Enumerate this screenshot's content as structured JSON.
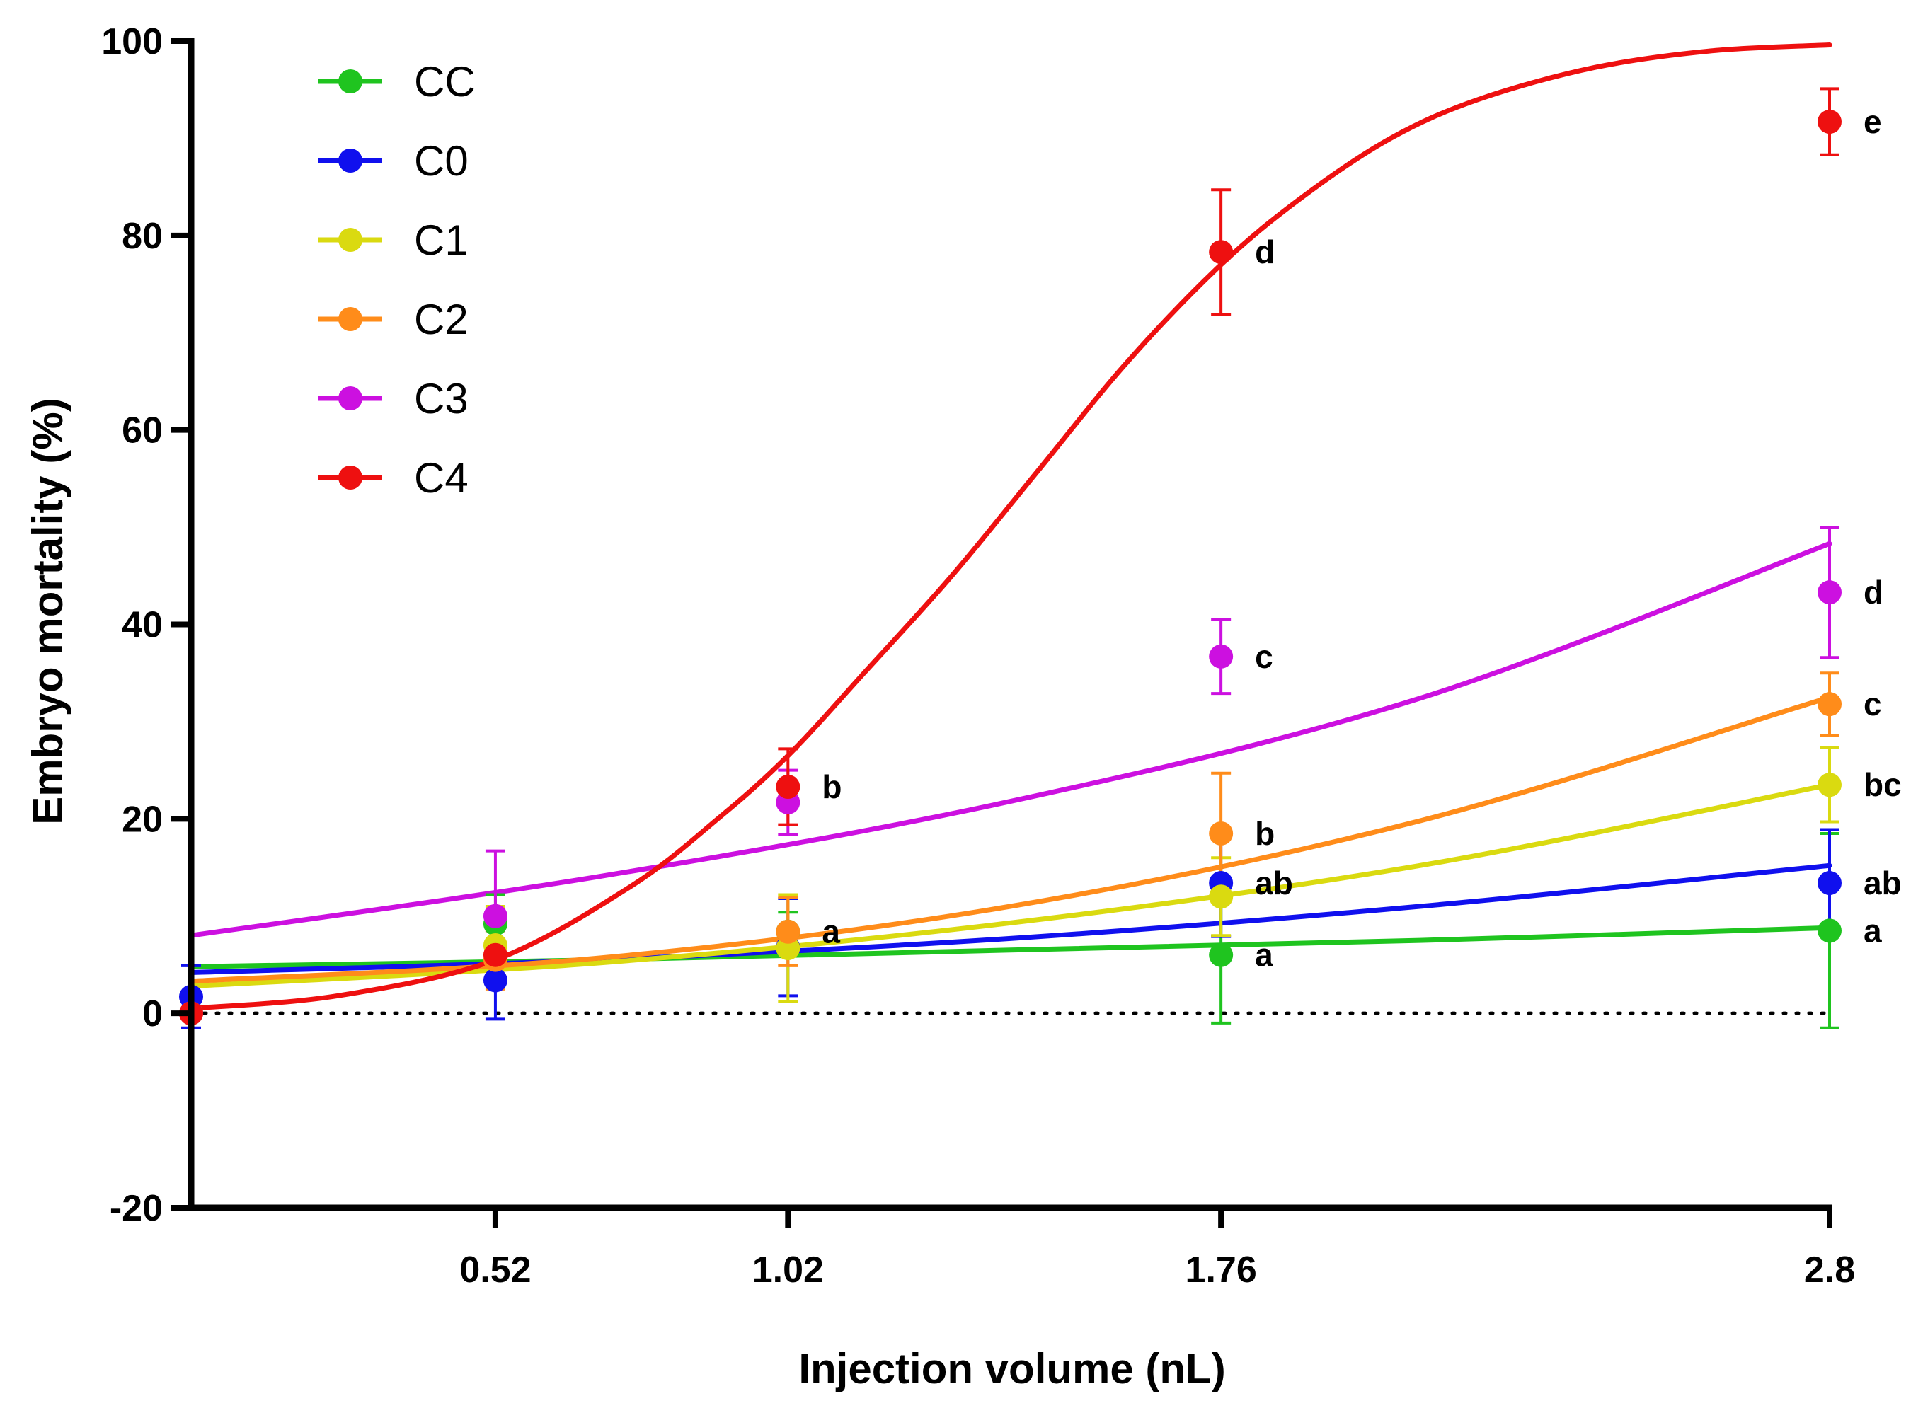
{
  "chart_data": {
    "type": "line",
    "title": "",
    "xlabel": "Injection volume (nL)",
    "ylabel": "Embryo mortality (%)",
    "x_ticks": [
      0.52,
      1.02,
      1.76,
      2.8
    ],
    "x_tick_labels": [
      "0.52",
      "1.02",
      "1.76",
      "2.8"
    ],
    "xlim": [
      0,
      2.8
    ],
    "y_ticks": [
      -20,
      0,
      20,
      40,
      60,
      80,
      100
    ],
    "y_tick_labels": [
      "-20",
      "0",
      "20",
      "40",
      "60",
      "80",
      "100"
    ],
    "ylim": [
      -20,
      100
    ],
    "reference_line": {
      "y": 0,
      "style": "dotted"
    },
    "legend_position": "top-left",
    "series": [
      {
        "name": "CC",
        "color": "#1fc41f",
        "points": [
          {
            "x": 0,
            "y": 0,
            "err": 0,
            "label": ""
          },
          {
            "x": 0.52,
            "y": 9.2,
            "err": 3.0,
            "label": ""
          },
          {
            "x": 1.02,
            "y": 8.4,
            "err": 2.0,
            "label": "a"
          },
          {
            "x": 1.76,
            "y": 6.0,
            "err": 7.0,
            "label": "a"
          },
          {
            "x": 2.8,
            "y": 8.5,
            "err": 10.0,
            "label": "a"
          }
        ],
        "fit": [
          [
            0,
            4.8
          ],
          [
            0.7,
            5.5
          ],
          [
            1.4,
            6.5
          ],
          [
            2.1,
            7.5
          ],
          [
            2.8,
            8.8
          ]
        ]
      },
      {
        "name": "C0",
        "color": "#1010ee",
        "points": [
          {
            "x": 0,
            "y": 1.7,
            "err": 3.2,
            "label": ""
          },
          {
            "x": 0.52,
            "y": 3.4,
            "err": 4.0,
            "label": ""
          },
          {
            "x": 1.02,
            "y": 6.8,
            "err": 5.0,
            "label": ""
          },
          {
            "x": 1.76,
            "y": 13.4,
            "err": 5.5,
            "label": "ab"
          },
          {
            "x": 2.8,
            "y": 13.4,
            "err": 5.5,
            "label": "ab"
          }
        ],
        "fit": [
          [
            0,
            4.2
          ],
          [
            0.7,
            5.5
          ],
          [
            1.4,
            7.7
          ],
          [
            2.1,
            11.0
          ],
          [
            2.8,
            15.2
          ]
        ]
      },
      {
        "name": "C1",
        "color": "#dada10",
        "points": [
          {
            "x": 0,
            "y": 0,
            "err": 0,
            "label": ""
          },
          {
            "x": 0.52,
            "y": 7.0,
            "err": 4.0,
            "label": ""
          },
          {
            "x": 1.02,
            "y": 6.7,
            "err": 5.5,
            "label": ""
          },
          {
            "x": 1.76,
            "y": 12.0,
            "err": 4.0,
            "label": ""
          },
          {
            "x": 2.8,
            "y": 23.5,
            "err": 3.8,
            "label": "bc"
          }
        ],
        "fit": [
          [
            0,
            2.8
          ],
          [
            0.7,
            5.2
          ],
          [
            1.4,
            9.3
          ],
          [
            2.1,
            15.2
          ],
          [
            2.8,
            23.5
          ]
        ]
      },
      {
        "name": "C2",
        "color": "#ff8c1a",
        "points": [
          {
            "x": 0,
            "y": 0,
            "err": 0,
            "label": ""
          },
          {
            "x": 0.52,
            "y": 5.5,
            "err": 3.0,
            "label": ""
          },
          {
            "x": 1.02,
            "y": 8.4,
            "err": 3.5,
            "label": ""
          },
          {
            "x": 1.76,
            "y": 18.5,
            "err": 6.2,
            "label": "b"
          },
          {
            "x": 2.8,
            "y": 31.8,
            "err": 3.2,
            "label": "c"
          }
        ],
        "fit": [
          [
            0,
            3.3
          ],
          [
            0.7,
            5.7
          ],
          [
            1.4,
            11.0
          ],
          [
            2.1,
            19.8
          ],
          [
            2.8,
            32.5
          ]
        ]
      },
      {
        "name": "C3",
        "color": "#cc10e0",
        "points": [
          {
            "x": 0,
            "y": 0,
            "err": 0,
            "label": ""
          },
          {
            "x": 0.52,
            "y": 10.0,
            "err": 6.7,
            "label": ""
          },
          {
            "x": 1.02,
            "y": 21.7,
            "err": 3.3,
            "label": ""
          },
          {
            "x": 1.76,
            "y": 36.7,
            "err": 3.8,
            "label": "c"
          },
          {
            "x": 2.8,
            "y": 43.3,
            "err": 6.7,
            "label": "d"
          }
        ],
        "fit": [
          [
            0,
            8.0
          ],
          [
            0.7,
            14.1
          ],
          [
            1.4,
            21.8
          ],
          [
            2.1,
            32.4
          ],
          [
            2.8,
            48.3
          ]
        ]
      },
      {
        "name": "C4",
        "color": "#ee1010",
        "points": [
          {
            "x": 0,
            "y": 0,
            "err": 0,
            "label": ""
          },
          {
            "x": 0.52,
            "y": 6.0,
            "err": 2.5,
            "label": ""
          },
          {
            "x": 1.02,
            "y": 23.3,
            "err": 3.9,
            "label": "b"
          },
          {
            "x": 1.76,
            "y": 78.3,
            "err": 6.4,
            "label": "d"
          },
          {
            "x": 2.8,
            "y": 91.7,
            "err": 3.4,
            "label": "e"
          }
        ],
        "fit": [
          [
            0,
            0.5
          ],
          [
            0.25,
            1.8
          ],
          [
            0.52,
            5.5
          ],
          [
            0.75,
            13.0
          ],
          [
            0.9,
            20.0
          ],
          [
            1.02,
            26.5
          ],
          [
            1.15,
            35.0
          ],
          [
            1.3,
            45.0
          ],
          [
            1.45,
            56.0
          ],
          [
            1.6,
            67.0
          ],
          [
            1.76,
            77.0
          ],
          [
            1.9,
            84.0
          ],
          [
            2.05,
            90.0
          ],
          [
            2.2,
            94.0
          ],
          [
            2.4,
            97.3
          ],
          [
            2.6,
            99.0
          ],
          [
            2.8,
            99.6
          ]
        ]
      }
    ]
  }
}
